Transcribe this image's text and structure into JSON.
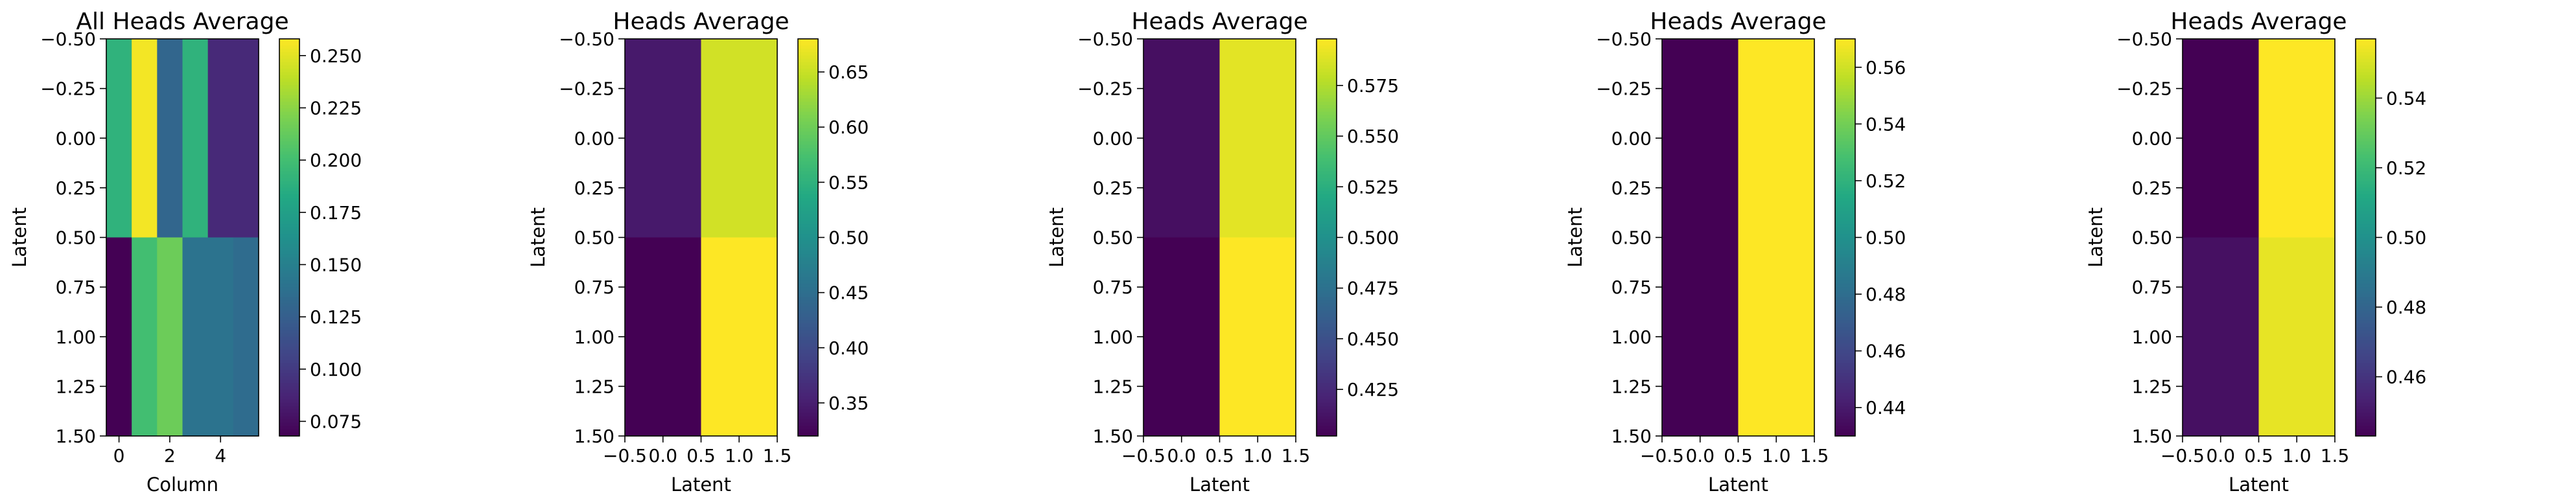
{
  "chart_data": [
    {
      "type": "heatmap",
      "title": "All Heads Average",
      "xlabel": "Column",
      "ylabel": "Latent",
      "x_ticks": [
        "0",
        "2",
        "4"
      ],
      "y_ticks": [
        "−0.50",
        "−0.25",
        "0.00",
        "0.25",
        "0.50",
        "0.75",
        "1.00",
        "1.25",
        "1.50"
      ],
      "colorbar_ticks": [
        "0.075",
        "0.100",
        "0.125",
        "0.150",
        "0.175",
        "0.200",
        "0.225",
        "0.250"
      ],
      "colormap": "viridis",
      "vmin": 0.068,
      "vmax": 0.258,
      "xlim": [
        -0.5,
        5.5
      ],
      "ylim": [
        1.5,
        -0.5
      ],
      "values": [
        [
          0.19,
          0.255,
          0.13,
          0.19,
          0.09,
          0.09
        ],
        [
          0.068,
          0.2,
          0.215,
          0.14,
          0.14,
          0.135
        ]
      ]
    },
    {
      "type": "heatmap",
      "title": "Heads Average",
      "xlabel": "Latent",
      "ylabel": "Latent",
      "x_ticks": [
        "−0.5",
        "0.0",
        "0.5",
        "1.0",
        "1.5"
      ],
      "y_ticks": [
        "−0.50",
        "−0.25",
        "0.00",
        "0.25",
        "0.50",
        "0.75",
        "1.00",
        "1.25",
        "1.50"
      ],
      "colorbar_ticks": [
        "0.35",
        "0.40",
        "0.45",
        "0.50",
        "0.55",
        "0.60",
        "0.65"
      ],
      "colormap": "viridis",
      "vmin": 0.32,
      "vmax": 0.68,
      "xlim": [
        -0.5,
        1.5
      ],
      "ylim": [
        1.5,
        -0.5
      ],
      "values": [
        [
          0.345,
          0.655
        ],
        [
          0.32,
          0.68
        ]
      ]
    },
    {
      "type": "heatmap",
      "title": "Heads Average",
      "xlabel": "Latent",
      "ylabel": "Latent",
      "x_ticks": [
        "−0.5",
        "0.0",
        "0.5",
        "1.0",
        "1.5"
      ],
      "y_ticks": [
        "−0.50",
        "−0.25",
        "0.00",
        "0.25",
        "0.50",
        "0.75",
        "1.00",
        "1.25",
        "1.50"
      ],
      "colorbar_ticks": [
        "0.425",
        "0.450",
        "0.475",
        "0.500",
        "0.525",
        "0.550",
        "0.575"
      ],
      "colormap": "viridis",
      "vmin": 0.402,
      "vmax": 0.598,
      "xlim": [
        -0.5,
        1.5
      ],
      "ylim": [
        1.5,
        -0.5
      ],
      "values": [
        [
          0.41,
          0.59
        ],
        [
          0.402,
          0.598
        ]
      ]
    },
    {
      "type": "heatmap",
      "title": "Heads Average",
      "xlabel": "Latent",
      "ylabel": "Latent",
      "x_ticks": [
        "−0.5",
        "0.0",
        "0.5",
        "1.0",
        "1.5"
      ],
      "y_ticks": [
        "−0.50",
        "−0.25",
        "0.00",
        "0.25",
        "0.50",
        "0.75",
        "1.00",
        "1.25",
        "1.50"
      ],
      "colorbar_ticks": [
        "0.44",
        "0.46",
        "0.48",
        "0.50",
        "0.52",
        "0.54",
        "0.56"
      ],
      "colormap": "viridis",
      "vmin": 0.43,
      "vmax": 0.57,
      "xlim": [
        -0.5,
        1.5
      ],
      "ylim": [
        1.5,
        -0.5
      ],
      "values": [
        [
          0.43,
          0.57
        ],
        [
          0.43,
          0.57
        ]
      ]
    },
    {
      "type": "heatmap",
      "title": "Heads Average",
      "xlabel": "Latent",
      "ylabel": "Latent",
      "x_ticks": [
        "−0.5",
        "0.0",
        "0.5",
        "1.0",
        "1.5"
      ],
      "y_ticks": [
        "−0.50",
        "−0.25",
        "0.00",
        "0.25",
        "0.50",
        "0.75",
        "1.00",
        "1.25",
        "1.50"
      ],
      "colorbar_ticks": [
        "0.46",
        "0.48",
        "0.50",
        "0.52",
        "0.54"
      ],
      "colormap": "viridis",
      "vmin": 0.443,
      "vmax": 0.557,
      "xlim": [
        -0.5,
        1.5
      ],
      "ylim": [
        1.5,
        -0.5
      ],
      "values": [
        [
          0.443,
          0.557
        ],
        [
          0.448,
          0.553
        ]
      ]
    }
  ]
}
